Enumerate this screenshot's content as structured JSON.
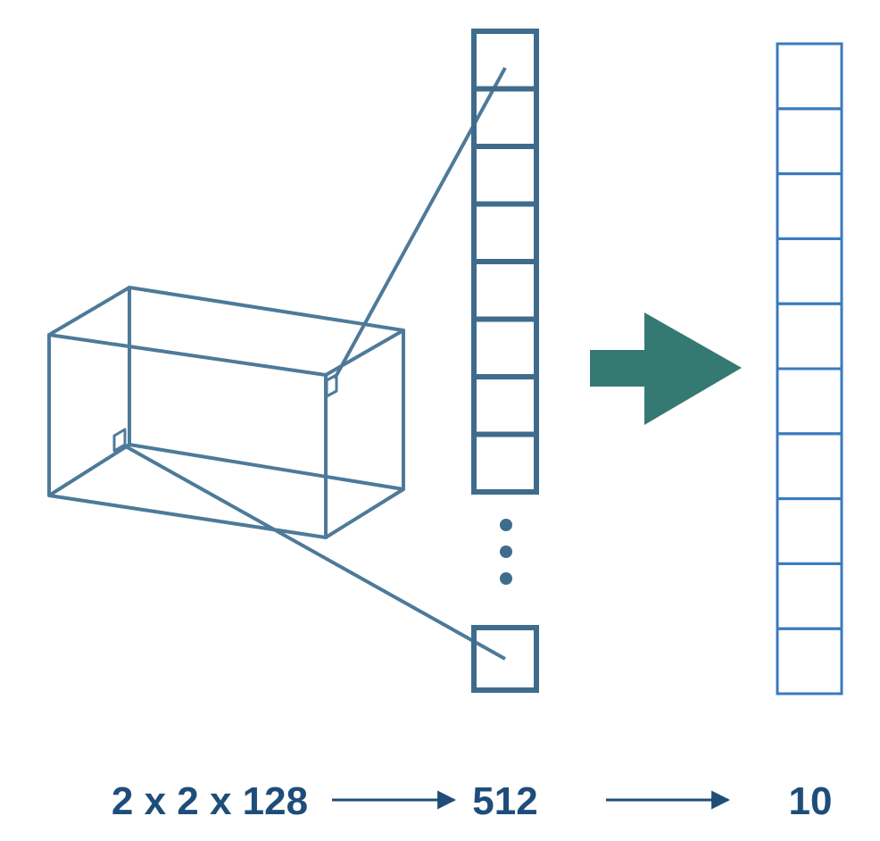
{
  "colors": {
    "box_stroke": "#4e7a99",
    "flat_stroke": "#3f6c8c",
    "output_stroke": "#3a7bbf",
    "arrow_fill": "#347a73",
    "label": "#1f4d7a"
  },
  "icons": {
    "transition_arrow": "right-arrow-icon",
    "ellipsis": "vertical-ellipsis-icon"
  },
  "cells": {
    "flatten_visible": 8,
    "output": 10
  },
  "labels": {
    "input_shape": "2 x 2 x 128",
    "flatten_size": "512",
    "output_size": "10"
  }
}
